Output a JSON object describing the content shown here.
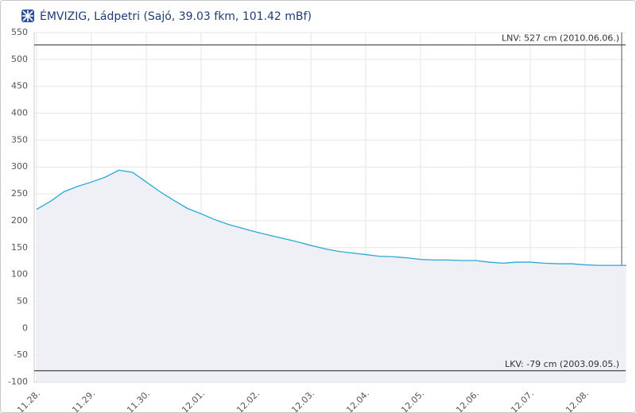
{
  "chart_data": {
    "type": "line",
    "title": "ÉMVIZIG, Ládpetri (Sajó, 39.03 fkm, 101.42 mBf)",
    "categories": [
      "11.28.",
      null,
      null,
      null,
      "11.29.",
      null,
      null,
      null,
      "11.30.",
      null,
      null,
      null,
      "12.01.",
      null,
      null,
      null,
      "12.02.",
      null,
      null,
      null,
      "12.03.",
      null,
      null,
      null,
      "12.04.",
      null,
      null,
      null,
      "12.05.",
      null,
      null,
      null,
      "12.06.",
      null,
      null,
      null,
      "12.07.",
      null,
      null,
      null,
      "12.08.",
      null,
      null,
      null
    ],
    "series": [
      {
        "color": "#2aa8d6",
        "fill": "#eef0f6",
        "values": [
          221,
          236,
          254,
          264,
          272,
          281,
          294,
          290,
          272,
          254,
          238,
          223,
          213,
          202,
          193,
          186,
          179,
          173,
          167,
          161,
          154,
          148,
          143,
          140,
          137,
          134,
          133,
          131,
          128,
          127,
          127,
          126,
          126,
          123,
          121,
          123,
          123,
          121,
          120,
          120,
          118,
          117,
          117,
          117
        ]
      }
    ],
    "reference_lines": [
      {
        "value": 527,
        "label": "LNV: 527 cm (2010.06.06.)"
      },
      {
        "value": -79,
        "label": "LKV: -79 cm (2003.09.05.)"
      }
    ],
    "ylim": [
      -100,
      550
    ],
    "yticks": [
      -100,
      -50,
      0,
      50,
      100,
      150,
      200,
      250,
      300,
      350,
      400,
      450,
      500,
      550
    ],
    "grid": true
  }
}
